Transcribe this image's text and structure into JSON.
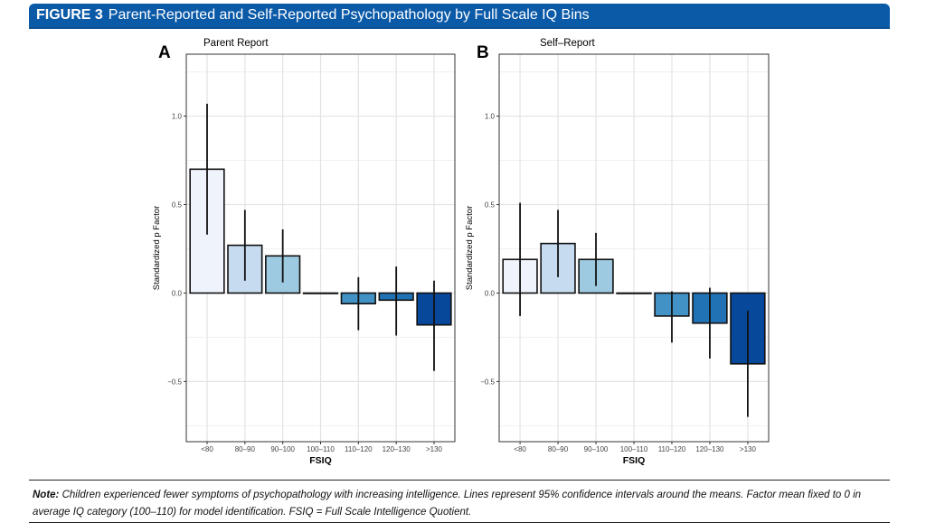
{
  "figure": {
    "label": "FIGURE 3",
    "title": "Parent-Reported and Self-Reported Psychopathology by Full Scale IQ Bins"
  },
  "note": {
    "label": "Note:",
    "text": "Children experienced fewer symptoms of psychopathology with increasing intelligence. Lines represent 95% confidence intervals around the means. Factor mean fixed to 0 in average IQ category (100–110) for model identification. FSIQ = Full Scale Intelligence Quotient."
  },
  "chart_data": [
    {
      "type": "bar",
      "panel": "A",
      "title": "Parent Report",
      "xlabel": "FSIQ",
      "ylabel": "Standardized p Factor",
      "ylim": [
        -0.84,
        1.35
      ],
      "yticks": [
        -0.5,
        0.0,
        0.5,
        1.0
      ],
      "ytick_labels": [
        "−0.5",
        "0.0",
        "0.5",
        "1.0"
      ],
      "categories": [
        "<80",
        "80–90",
        "90–100",
        "100–110",
        "110–120",
        "120–130",
        ">130"
      ],
      "values": [
        0.7,
        0.27,
        0.21,
        0.0,
        -0.06,
        -0.04,
        -0.18
      ],
      "ci_low": [
        0.33,
        0.07,
        0.06,
        null,
        -0.21,
        -0.24,
        -0.44
      ],
      "ci_high": [
        1.07,
        0.47,
        0.36,
        null,
        0.09,
        0.15,
        0.07
      ],
      "colors": [
        "#eef3fc",
        "#c6dbef",
        "#9ecae1",
        "#6baed6",
        "#4292c6",
        "#2171b5",
        "#08489a"
      ],
      "grid": true
    },
    {
      "type": "bar",
      "panel": "B",
      "title": "Self–Report",
      "xlabel": "FSIQ",
      "ylabel": "Standardized p Factor",
      "ylim": [
        -0.84,
        1.35
      ],
      "yticks": [
        -0.5,
        0.0,
        0.5,
        1.0
      ],
      "ytick_labels": [
        "−0.5",
        "0.0",
        "0.5",
        "1.0"
      ],
      "categories": [
        "<80",
        "80–90",
        "90–100",
        "100–110",
        "110–120",
        "120–130",
        ">130"
      ],
      "values": [
        0.19,
        0.28,
        0.19,
        0.0,
        -0.13,
        -0.17,
        -0.4
      ],
      "ci_low": [
        -0.13,
        0.09,
        0.04,
        null,
        -0.28,
        -0.37,
        -0.7
      ],
      "ci_high": [
        0.51,
        0.47,
        0.34,
        null,
        0.01,
        0.03,
        -0.1
      ],
      "colors": [
        "#eef3fc",
        "#c6dbef",
        "#9ecae1",
        "#6baed6",
        "#4292c6",
        "#2171b5",
        "#08489a"
      ],
      "grid": true
    }
  ]
}
